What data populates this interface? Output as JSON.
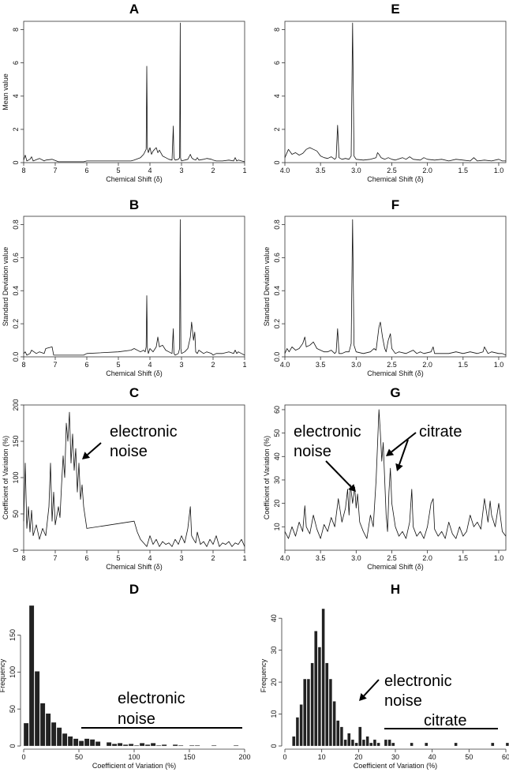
{
  "chart_data": [
    {
      "panel": "A",
      "type": "line",
      "title": "A",
      "xlabel": "Chemical Shift (δ)",
      "ylabel": "Mean value",
      "xlim": [
        8,
        1
      ],
      "ylim": [
        0,
        8.5
      ],
      "xticks": [
        "8",
        "7",
        "6",
        "5",
        "4",
        "3",
        "2",
        "1"
      ],
      "yticks": [
        "0",
        "2",
        "4",
        "6",
        "8"
      ],
      "x": [
        8.0,
        7.95,
        7.9,
        7.8,
        7.75,
        7.7,
        7.5,
        7.35,
        7.3,
        7.1,
        6.9,
        6.5,
        6.1,
        6.0,
        5.5,
        5.0,
        4.6,
        4.5,
        4.3,
        4.2,
        4.12,
        4.1,
        4.08,
        4.05,
        4.0,
        3.95,
        3.9,
        3.8,
        3.75,
        3.7,
        3.6,
        3.5,
        3.4,
        3.3,
        3.26,
        3.24,
        3.22,
        3.2,
        3.1,
        3.06,
        3.04,
        3.03,
        3.02,
        3.0,
        2.9,
        2.8,
        2.72,
        2.68,
        2.62,
        2.55,
        2.5,
        2.45,
        2.3,
        2.2,
        2.05,
        2.0,
        1.9,
        1.7,
        1.5,
        1.35,
        1.3,
        1.25,
        1.2,
        1.1,
        1.0
      ],
      "y": [
        0.15,
        0.45,
        0.1,
        0.2,
        0.35,
        0.1,
        0.25,
        0.1,
        0.15,
        0.2,
        0.05,
        0.05,
        0.05,
        0.1,
        0.1,
        0.1,
        0.1,
        0.15,
        0.3,
        0.5,
        0.8,
        5.8,
        0.9,
        0.6,
        0.9,
        0.5,
        0.7,
        0.9,
        0.6,
        0.75,
        0.4,
        0.3,
        0.2,
        0.15,
        2.2,
        0.3,
        0.2,
        0.15,
        0.2,
        0.3,
        8.4,
        0.3,
        0.2,
        0.1,
        0.15,
        0.2,
        0.5,
        0.3,
        0.2,
        0.15,
        0.3,
        0.15,
        0.2,
        0.25,
        0.2,
        0.15,
        0.1,
        0.1,
        0.15,
        0.1,
        0.3,
        0.1,
        0.15,
        0.1,
        0.05
      ]
    },
    {
      "panel": "E",
      "type": "line",
      "title": "E",
      "xlabel": "Chemical Shift (δ)",
      "ylabel": "",
      "xlim": [
        4.0,
        0.9
      ],
      "ylim": [
        0,
        8.5
      ],
      "xticks": [
        "4.0",
        "3.5",
        "3.0",
        "2.5",
        "2.0",
        "1.5",
        "1.0"
      ],
      "yticks": [
        "0",
        "2",
        "4",
        "6",
        "8"
      ],
      "x": [
        4.0,
        3.95,
        3.9,
        3.85,
        3.8,
        3.75,
        3.7,
        3.65,
        3.6,
        3.55,
        3.5,
        3.45,
        3.4,
        3.35,
        3.3,
        3.28,
        3.26,
        3.24,
        3.2,
        3.15,
        3.1,
        3.07,
        3.05,
        3.03,
        3.0,
        2.9,
        2.8,
        2.72,
        2.7,
        2.68,
        2.65,
        2.6,
        2.55,
        2.5,
        2.45,
        2.35,
        2.3,
        2.25,
        2.2,
        2.1,
        2.05,
        2.0,
        1.9,
        1.8,
        1.7,
        1.6,
        1.5,
        1.4,
        1.35,
        1.3,
        1.2,
        1.1,
        1.0,
        0.95,
        0.9
      ],
      "y": [
        0.3,
        0.8,
        0.5,
        0.6,
        0.45,
        0.55,
        0.8,
        0.9,
        0.8,
        0.7,
        0.4,
        0.3,
        0.25,
        0.35,
        0.2,
        0.3,
        2.25,
        0.3,
        0.2,
        0.25,
        0.2,
        0.4,
        8.4,
        0.4,
        0.2,
        0.15,
        0.2,
        0.3,
        0.6,
        0.5,
        0.3,
        0.2,
        0.3,
        0.2,
        0.15,
        0.3,
        0.2,
        0.35,
        0.2,
        0.15,
        0.3,
        0.2,
        0.15,
        0.2,
        0.1,
        0.2,
        0.15,
        0.1,
        0.3,
        0.1,
        0.15,
        0.1,
        0.2,
        0.1,
        0.1
      ]
    },
    {
      "panel": "B",
      "type": "line",
      "title": "B",
      "xlabel": "Chemical Shift (δ)",
      "ylabel": "Standard Deviation value",
      "xlim": [
        8,
        1
      ],
      "ylim": [
        0,
        0.85
      ],
      "xticks": [
        "8",
        "7",
        "6",
        "5",
        "4",
        "3",
        "2",
        "1"
      ],
      "yticks": [
        "0.0",
        "0.2",
        "0.4",
        "0.6",
        "0.8"
      ],
      "x": [
        8.0,
        7.95,
        7.9,
        7.8,
        7.75,
        7.6,
        7.5,
        7.35,
        7.3,
        7.1,
        7.05,
        6.9,
        6.5,
        6.1,
        6.0,
        5.0,
        4.6,
        4.5,
        4.3,
        4.2,
        4.15,
        4.12,
        4.1,
        4.08,
        4.05,
        4.0,
        3.95,
        3.9,
        3.8,
        3.75,
        3.7,
        3.6,
        3.5,
        3.4,
        3.3,
        3.26,
        3.24,
        3.2,
        3.1,
        3.06,
        3.04,
        3.02,
        3.0,
        2.9,
        2.8,
        2.72,
        2.68,
        2.62,
        2.58,
        2.55,
        2.5,
        2.45,
        2.3,
        2.2,
        2.05,
        2.0,
        1.9,
        1.7,
        1.5,
        1.35,
        1.3,
        1.25,
        1.2,
        1.1,
        1.0
      ],
      "y": [
        0.02,
        0.03,
        0.01,
        0.02,
        0.04,
        0.02,
        0.03,
        0.02,
        0.05,
        0.06,
        0.01,
        0.01,
        0.01,
        0.01,
        0.02,
        0.03,
        0.04,
        0.05,
        0.03,
        0.04,
        0.03,
        0.06,
        0.37,
        0.05,
        0.02,
        0.05,
        0.04,
        0.03,
        0.06,
        0.12,
        0.06,
        0.07,
        0.04,
        0.03,
        0.02,
        0.17,
        0.02,
        0.01,
        0.02,
        0.05,
        0.83,
        0.05,
        0.02,
        0.03,
        0.05,
        0.12,
        0.21,
        0.1,
        0.15,
        0.03,
        0.02,
        0.04,
        0.02,
        0.03,
        0.02,
        0.01,
        0.02,
        0.02,
        0.03,
        0.02,
        0.04,
        0.02,
        0.03,
        0.02,
        0.01
      ]
    },
    {
      "panel": "F",
      "type": "line",
      "title": "F",
      "xlabel": "Chemical Shift (δ)",
      "ylabel": "Standard Deviation value",
      "xlim": [
        4.0,
        0.9
      ],
      "ylim": [
        0,
        0.85
      ],
      "xticks": [
        "4.0",
        "3.5",
        "3.0",
        "2.5",
        "2.0",
        "1.5",
        "1.0"
      ],
      "yticks": [
        "0.0",
        "0.2",
        "0.4",
        "0.6",
        "0.8"
      ],
      "x": [
        4.0,
        3.97,
        3.94,
        3.9,
        3.85,
        3.8,
        3.75,
        3.72,
        3.7,
        3.65,
        3.6,
        3.55,
        3.5,
        3.45,
        3.4,
        3.35,
        3.3,
        3.28,
        3.26,
        3.24,
        3.2,
        3.15,
        3.1,
        3.07,
        3.05,
        3.03,
        3.0,
        2.9,
        2.8,
        2.75,
        2.72,
        2.68,
        2.66,
        2.63,
        2.6,
        2.58,
        2.55,
        2.52,
        2.5,
        2.45,
        2.4,
        2.3,
        2.2,
        2.15,
        2.1,
        2.05,
        1.95,
        1.92,
        1.9,
        1.8,
        1.7,
        1.6,
        1.5,
        1.4,
        1.3,
        1.22,
        1.2,
        1.15,
        1.1,
        1.0,
        0.95,
        0.9
      ],
      "y": [
        0.02,
        0.05,
        0.03,
        0.06,
        0.04,
        0.05,
        0.08,
        0.12,
        0.06,
        0.07,
        0.09,
        0.05,
        0.04,
        0.03,
        0.03,
        0.04,
        0.02,
        0.03,
        0.17,
        0.02,
        0.02,
        0.03,
        0.03,
        0.08,
        0.83,
        0.07,
        0.03,
        0.02,
        0.03,
        0.05,
        0.04,
        0.18,
        0.21,
        0.12,
        0.05,
        0.03,
        0.1,
        0.14,
        0.05,
        0.02,
        0.03,
        0.02,
        0.04,
        0.02,
        0.03,
        0.02,
        0.03,
        0.06,
        0.02,
        0.02,
        0.02,
        0.03,
        0.02,
        0.03,
        0.02,
        0.03,
        0.06,
        0.02,
        0.03,
        0.02,
        0.02,
        0.01
      ]
    },
    {
      "panel": "C",
      "type": "line",
      "title": "C",
      "xlabel": "Chemical Shift (δ)",
      "ylabel": "Coefficient of Variation (%)",
      "xlim": [
        8,
        1
      ],
      "ylim": [
        0,
        200
      ],
      "xticks": [
        "8",
        "7",
        "6",
        "5",
        "4",
        "3",
        "2",
        "1"
      ],
      "yticks": [
        "0",
        "50",
        "100",
        "150",
        "200"
      ],
      "x": [
        8.0,
        7.95,
        7.9,
        7.85,
        7.8,
        7.75,
        7.7,
        7.6,
        7.5,
        7.4,
        7.3,
        7.2,
        7.15,
        7.1,
        7.05,
        7.0,
        6.9,
        6.85,
        6.8,
        6.75,
        6.7,
        6.65,
        6.6,
        6.55,
        6.5,
        6.45,
        6.4,
        6.35,
        6.3,
        6.25,
        6.2,
        6.15,
        6.1,
        6.0,
        4.5,
        4.4,
        4.3,
        4.2,
        4.1,
        4.0,
        3.9,
        3.8,
        3.7,
        3.6,
        3.5,
        3.4,
        3.3,
        3.2,
        3.1,
        3.0,
        2.9,
        2.8,
        2.72,
        2.68,
        2.62,
        2.55,
        2.5,
        2.4,
        2.3,
        2.2,
        2.1,
        2.0,
        1.9,
        1.8,
        1.7,
        1.6,
        1.5,
        1.4,
        1.3,
        1.2,
        1.1,
        1.0
      ],
      "y": [
        40,
        120,
        30,
        60,
        25,
        55,
        20,
        35,
        15,
        30,
        20,
        60,
        120,
        40,
        80,
        35,
        60,
        45,
        90,
        130,
        100,
        175,
        150,
        190,
        120,
        160,
        110,
        140,
        80,
        120,
        70,
        90,
        60,
        30,
        40,
        25,
        15,
        10,
        5,
        20,
        8,
        15,
        5,
        12,
        8,
        10,
        5,
        15,
        8,
        20,
        10,
        30,
        60,
        20,
        15,
        10,
        25,
        8,
        12,
        5,
        15,
        8,
        20,
        5,
        10,
        8,
        12,
        5,
        10,
        8,
        15,
        5
      ]
    },
    {
      "panel": "G",
      "type": "line",
      "title": "G",
      "xlabel": "Chemical Shift (δ)",
      "ylabel": "Coefficient of Variation (%)",
      "xlim": [
        4.0,
        0.9
      ],
      "ylim": [
        0,
        62
      ],
      "xticks": [
        "4.0",
        "3.5",
        "3.0",
        "2.5",
        "2.0",
        "1.5",
        "1.0"
      ],
      "yticks": [
        "10",
        "20",
        "30",
        "40",
        "50",
        "60"
      ],
      "x": [
        4.0,
        3.95,
        3.9,
        3.85,
        3.8,
        3.75,
        3.72,
        3.7,
        3.65,
        3.6,
        3.55,
        3.5,
        3.45,
        3.4,
        3.35,
        3.3,
        3.25,
        3.2,
        3.15,
        3.12,
        3.1,
        3.08,
        3.05,
        3.02,
        3.0,
        2.98,
        2.95,
        2.9,
        2.85,
        2.8,
        2.76,
        2.72,
        2.7,
        2.68,
        2.66,
        2.64,
        2.62,
        2.6,
        2.58,
        2.56,
        2.54,
        2.52,
        2.5,
        2.45,
        2.4,
        2.35,
        2.3,
        2.25,
        2.22,
        2.2,
        2.15,
        2.1,
        2.05,
        2.0,
        1.95,
        1.92,
        1.9,
        1.85,
        1.8,
        1.75,
        1.7,
        1.65,
        1.6,
        1.55,
        1.5,
        1.45,
        1.4,
        1.35,
        1.3,
        1.25,
        1.2,
        1.18,
        1.15,
        1.12,
        1.1,
        1.05,
        1.0,
        0.95,
        0.9
      ],
      "y": [
        8,
        5,
        10,
        6,
        12,
        8,
        19,
        10,
        7,
        15,
        9,
        5,
        11,
        8,
        14,
        10,
        22,
        12,
        18,
        26,
        15,
        28,
        20,
        27,
        18,
        24,
        12,
        8,
        5,
        15,
        10,
        30,
        45,
        60,
        50,
        38,
        46,
        30,
        15,
        8,
        25,
        35,
        20,
        10,
        6,
        8,
        5,
        12,
        26,
        10,
        6,
        8,
        5,
        10,
        20,
        22,
        9,
        6,
        8,
        5,
        12,
        7,
        5,
        10,
        6,
        8,
        15,
        10,
        12,
        9,
        22,
        18,
        12,
        21,
        15,
        10,
        20,
        8,
        6
      ]
    },
    {
      "panel": "D",
      "type": "bar",
      "title": "D",
      "xlabel": "Coefficient of Variation (%)",
      "ylabel": "Frequency",
      "xlim": [
        0,
        200
      ],
      "ylim": [
        0,
        190
      ],
      "xticks": [
        "0",
        "50",
        "100",
        "150",
        "200"
      ],
      "yticks": [
        "0",
        "50",
        "100",
        "150"
      ],
      "bin_start": 0,
      "bin_width": 5,
      "values": [
        31,
        190,
        101,
        58,
        44,
        32,
        25,
        17,
        13,
        10,
        7,
        10,
        9,
        6,
        0,
        5,
        3,
        4,
        2,
        3,
        1,
        4,
        2,
        4,
        1,
        2,
        0,
        2,
        1,
        0,
        1,
        1,
        0,
        0,
        1,
        0,
        0,
        0,
        1
      ]
    },
    {
      "panel": "H",
      "type": "bar",
      "title": "H",
      "xlabel": "Coefficient of Variation (%)",
      "ylabel": "Frequency",
      "xlim": [
        0,
        60
      ],
      "ylim": [
        0,
        44
      ],
      "xticks": [
        "0",
        "10",
        "20",
        "30",
        "40",
        "50",
        "60"
      ],
      "yticks": [
        "0",
        "10",
        "20",
        "30",
        "40"
      ],
      "bin_start": 2,
      "bin_width": 1,
      "values": [
        3,
        9,
        13,
        21,
        21,
        26,
        36,
        31,
        43,
        26,
        21,
        14,
        8,
        6,
        2,
        4,
        2,
        1,
        6,
        2,
        3,
        1,
        2,
        1,
        0,
        2,
        2,
        1,
        0,
        0,
        0,
        0,
        1,
        0,
        0,
        0,
        1,
        0,
        0,
        0,
        0,
        0,
        0,
        0,
        1,
        0,
        0,
        0,
        0,
        0,
        0,
        0,
        0,
        0,
        1,
        0,
        0,
        0,
        1
      ]
    }
  ],
  "annotations": {
    "c_noise_1": "electronic",
    "c_noise_2": "noise",
    "g_noise_1": "electronic",
    "g_noise_2": "noise",
    "g_citrate": "citrate",
    "d_noise_1": "electronic",
    "d_noise_2": "noise",
    "h_noise_1": "electronic",
    "h_noise_2": "noise",
    "h_citrate": "citrate"
  }
}
